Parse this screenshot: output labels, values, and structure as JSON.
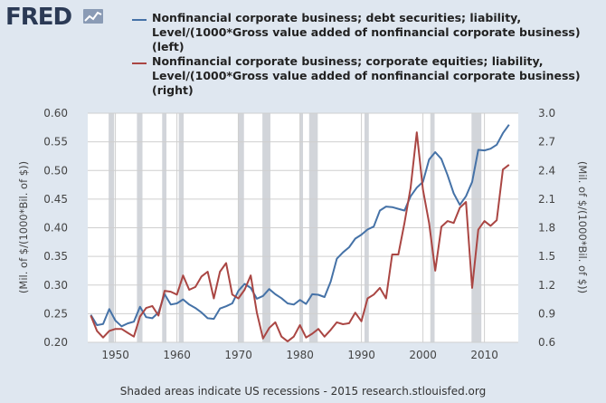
{
  "brand": {
    "logo_text": "FRED",
    "logo_icon": "line-graph-icon"
  },
  "footer": {
    "text": "Shaded areas indicate US recessions - 2015 research.stlouisfed.org"
  },
  "colors": {
    "left_series": "#4572a7",
    "right_series": "#aa4643",
    "recession": "#d2d5da",
    "plot_bg": "#ffffff",
    "page_bg": "#dfe7f0"
  },
  "chart_data": {
    "type": "line",
    "legend_position": "top",
    "grid": true,
    "xlim": [
      1945.5,
      2015.5
    ],
    "xticks": [
      1950,
      1960,
      1970,
      1980,
      1990,
      2000,
      2010
    ],
    "xtick_labels": [
      "1950",
      "1960",
      "1970",
      "1980",
      "1990",
      "2000",
      "2010"
    ],
    "left_axis": {
      "label": "(Mil. of $/(1000*Bil. of $))",
      "ylim": [
        0.2,
        0.6
      ],
      "ticks": [
        0.2,
        0.25,
        0.3,
        0.35,
        0.4,
        0.45,
        0.5,
        0.55,
        0.6
      ],
      "tick_labels": [
        "0.20",
        "0.25",
        "0.30",
        "0.35",
        "0.40",
        "0.45",
        "0.50",
        "0.55",
        "0.60"
      ]
    },
    "right_axis": {
      "label": "(Mil. of $/(1000*Bil. of $))",
      "ylim": [
        0.6,
        3.0
      ],
      "ticks": [
        0.6,
        0.9,
        1.2,
        1.5,
        1.8,
        2.1,
        2.4,
        2.7,
        3.0
      ],
      "tick_labels": [
        "0.6",
        "0.9",
        "1.2",
        "1.5",
        "1.8",
        "2.1",
        "2.4",
        "2.7",
        "3.0"
      ]
    },
    "recessions": [
      [
        1948.9,
        1949.8
      ],
      [
        1953.5,
        1954.4
      ],
      [
        1957.6,
        1958.3
      ],
      [
        1960.3,
        1961.1
      ],
      [
        1969.9,
        1970.9
      ],
      [
        1973.9,
        1975.2
      ],
      [
        1980.0,
        1980.5
      ],
      [
        1981.5,
        1982.9
      ],
      [
        1990.5,
        1991.2
      ],
      [
        2001.2,
        2001.9
      ],
      [
        2007.9,
        2009.5
      ]
    ],
    "x": [
      1946,
      1947,
      1948,
      1949,
      1950,
      1951,
      1952,
      1953,
      1954,
      1955,
      1956,
      1957,
      1958,
      1959,
      1960,
      1961,
      1962,
      1963,
      1964,
      1965,
      1966,
      1967,
      1968,
      1969,
      1970,
      1971,
      1972,
      1973,
      1974,
      1975,
      1976,
      1977,
      1978,
      1979,
      1980,
      1981,
      1982,
      1983,
      1984,
      1985,
      1986,
      1987,
      1988,
      1989,
      1990,
      1991,
      1992,
      1993,
      1994,
      1995,
      1996,
      1997,
      1998,
      1999,
      2000,
      2001,
      2002,
      2003,
      2004,
      2005,
      2006,
      2007,
      2008,
      2009,
      2010,
      2011,
      2012,
      2013,
      2014
    ],
    "series": [
      {
        "name": "Nonfinancial corporate business; debt securities; liability, Level/(1000*Gross value added of nonfinancial corporate business) (left)",
        "axis": "left",
        "color": "#4572a7",
        "values": [
          0.248,
          0.23,
          0.232,
          0.258,
          0.238,
          0.228,
          0.233,
          0.236,
          0.262,
          0.244,
          0.242,
          0.252,
          0.284,
          0.266,
          0.268,
          0.275,
          0.266,
          0.26,
          0.252,
          0.242,
          0.241,
          0.259,
          0.263,
          0.268,
          0.29,
          0.302,
          0.295,
          0.276,
          0.281,
          0.293,
          0.284,
          0.277,
          0.268,
          0.266,
          0.274,
          0.267,
          0.284,
          0.283,
          0.279,
          0.306,
          0.346,
          0.357,
          0.366,
          0.381,
          0.388,
          0.397,
          0.402,
          0.43,
          0.437,
          0.436,
          0.433,
          0.43,
          0.455,
          0.47,
          0.48,
          0.519,
          0.532,
          0.52,
          0.492,
          0.46,
          0.44,
          0.455,
          0.48,
          0.536,
          0.535,
          0.538,
          0.545,
          0.565,
          0.58
        ]
      },
      {
        "name": "Nonfinancial corporate business; corporate equities; liability, Level/(1000*Gross value added of nonfinancial corporate business) (right)",
        "axis": "right",
        "color": "#aa4643",
        "values": [
          0.88,
          0.72,
          0.65,
          0.72,
          0.74,
          0.74,
          0.7,
          0.66,
          0.87,
          0.96,
          0.98,
          0.88,
          1.14,
          1.13,
          1.1,
          1.3,
          1.15,
          1.18,
          1.29,
          1.34,
          1.06,
          1.34,
          1.43,
          1.1,
          1.06,
          1.15,
          1.3,
          0.91,
          0.64,
          0.75,
          0.81,
          0.66,
          0.61,
          0.66,
          0.78,
          0.65,
          0.69,
          0.74,
          0.66,
          0.73,
          0.81,
          0.79,
          0.8,
          0.91,
          0.82,
          1.06,
          1.1,
          1.17,
          1.06,
          1.52,
          1.52,
          1.85,
          2.22,
          2.8,
          2.2,
          1.85,
          1.35,
          1.81,
          1.87,
          1.85,
          2.01,
          2.07,
          1.17,
          1.78,
          1.87,
          1.82,
          1.88,
          2.41,
          2.46
        ]
      }
    ]
  }
}
